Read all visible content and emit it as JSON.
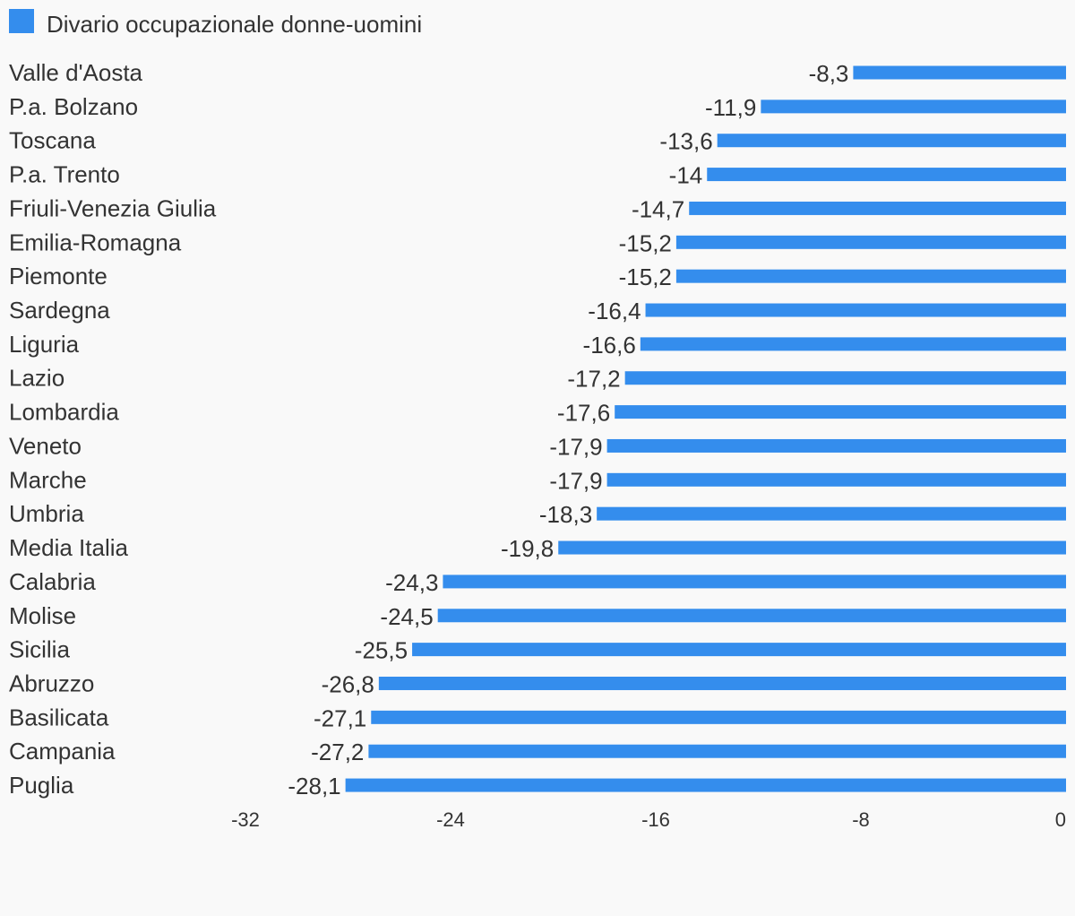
{
  "chart_data": {
    "type": "bar",
    "orientation": "horizontal",
    "legend": {
      "position": "top-left",
      "entries": [
        "Divario occupazionale donne-uomini"
      ]
    },
    "colors": {
      "bar": "#348DED",
      "text": "#333333",
      "background": "#F9F9F9"
    },
    "categories": [
      "Valle d'Aosta",
      "P.a. Bolzano",
      "Toscana",
      "P.a. Trento",
      "Friuli-Venezia Giulia",
      "Emilia-Romagna",
      "Piemonte",
      "Sardegna",
      "Liguria",
      "Lazio",
      "Lombardia",
      "Veneto",
      "Marche",
      "Umbria",
      "Media Italia",
      "Calabria",
      "Molise",
      "Sicilia",
      "Abruzzo",
      "Basilicata",
      "Campania",
      "Puglia"
    ],
    "series": [
      {
        "name": "Divario occupazionale donne-uomini",
        "values": [
          -8.3,
          -11.9,
          -13.6,
          -14,
          -14.7,
          -15.2,
          -15.2,
          -16.4,
          -16.6,
          -17.2,
          -17.6,
          -17.9,
          -17.9,
          -18.3,
          -19.8,
          -24.3,
          -24.5,
          -25.5,
          -26.8,
          -27.1,
          -27.2,
          -28.1
        ],
        "labels": [
          "-8,3",
          "-11,9",
          "-13,6",
          "-14",
          "-14,7",
          "-15,2",
          "-15,2",
          "-16,4",
          "-16,6",
          "-17,2",
          "-17,6",
          "-17,9",
          "-17,9",
          "-18,3",
          "-19,8",
          "-24,3",
          "-24,5",
          "-25,5",
          "-26,8",
          "-27,1",
          "-27,2",
          "-28,1"
        ]
      }
    ],
    "xlim": [
      -32,
      0
    ],
    "xticks": [
      -32,
      -24,
      -16,
      -8,
      0
    ],
    "xtick_labels": [
      "-32",
      "-24",
      "-16",
      "-8",
      "0"
    ],
    "grid": false
  }
}
